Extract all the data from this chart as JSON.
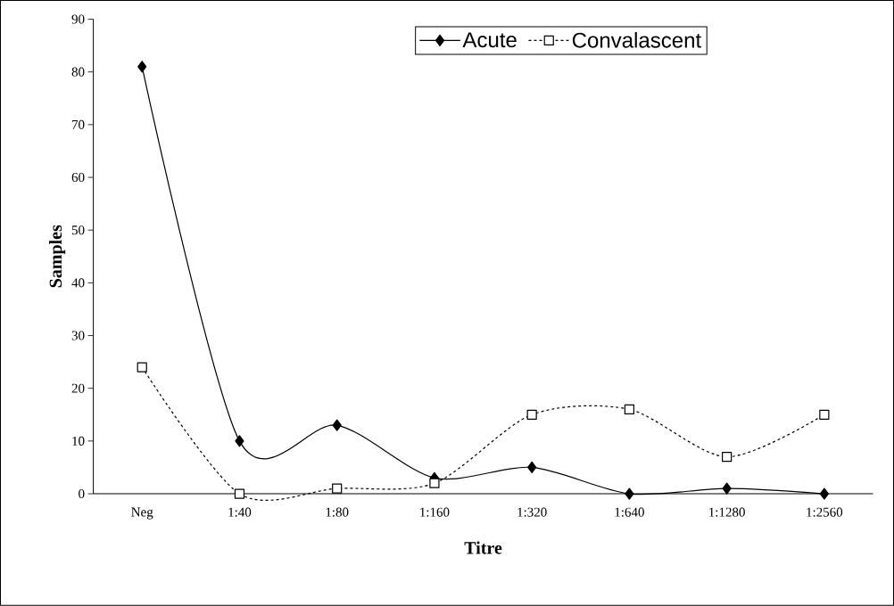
{
  "chart_data": {
    "type": "line",
    "xlabel": "Titre",
    "ylabel": "Samples",
    "categories": [
      "Neg",
      "1:40",
      "1:80",
      "1:160",
      "1:320",
      "1:640",
      "1:1280",
      "1:2560"
    ],
    "series": [
      {
        "name": "Acute",
        "color": "#000000",
        "marker": "diamond",
        "line_style": "solid",
        "values": [
          81,
          10,
          13,
          3,
          5,
          0,
          1,
          0
        ]
      },
      {
        "name": "Convalascent",
        "color": "#000000",
        "marker": "square",
        "line_style": "dotted",
        "values": [
          24,
          0,
          1,
          2,
          15,
          16,
          7,
          15
        ]
      }
    ],
    "ylim": [
      0,
      90
    ],
    "yticks": [
      0,
      10,
      20,
      30,
      40,
      50,
      60,
      70,
      80,
      90
    ],
    "grid": false,
    "legend": "top"
  }
}
